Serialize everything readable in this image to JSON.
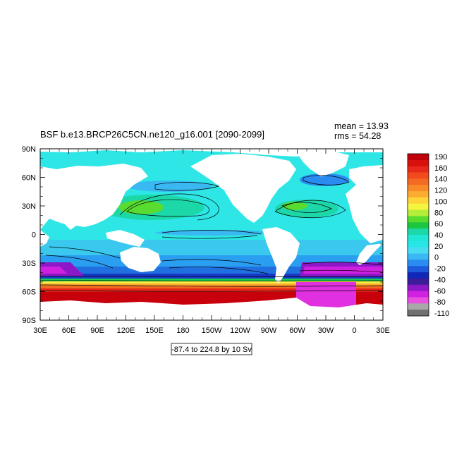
{
  "title": "BSF b.e13.BRCP26C5CN.ne120_g16.001 [2090-2099]",
  "stats": {
    "mean": "mean = 13.93",
    "rms": "rms = 54.28"
  },
  "contour_info": "-87.4 to 224.8 by 10 Sv",
  "map": {
    "lat_labels": [
      "90N",
      "60N",
      "30N",
      "0",
      "30S",
      "60S",
      "90S"
    ],
    "lon_labels": [
      "30E",
      "60E",
      "90E",
      "120E",
      "150E",
      "180",
      "150W",
      "120W",
      "90W",
      "60W",
      "30W",
      "0",
      "30E"
    ],
    "land_color": "#ffffff",
    "frame_color": "#000000"
  },
  "colorbar": {
    "labels": [
      "190",
      "160",
      "140",
      "120",
      "100",
      "80",
      "60",
      "40",
      "20",
      "0",
      "-20",
      "-40",
      "-60",
      "-80",
      "-110"
    ],
    "colors": [
      "#c0000a",
      "#d8100e",
      "#e8281a",
      "#f24a1e",
      "#f56a22",
      "#f98a28",
      "#fbac30",
      "#fed43a",
      "#f5f540",
      "#b4ee38",
      "#58dc30",
      "#1cc640",
      "#1cd8a8",
      "#20e6d6",
      "#28e6e6",
      "#48dcf2",
      "#3ab8f2",
      "#2a8cf0",
      "#1c5cdc",
      "#1028b8",
      "#3c1c98",
      "#8c18c8",
      "#d020e0",
      "#e850e0",
      "#a8a8a8",
      "#707070"
    ]
  },
  "chart_data": {
    "type": "heatmap",
    "title": "BSF b.e13.BRCP26C5CN.ne120_g16.001 [2090-2099]",
    "x_ticks": [
      "30E",
      "60E",
      "90E",
      "120E",
      "150E",
      "180",
      "150W",
      "120W",
      "90W",
      "60W",
      "30W",
      "0",
      "30E"
    ],
    "y_ticks": [
      "90N",
      "60N",
      "30N",
      "0",
      "30S",
      "60S",
      "90S"
    ],
    "levels": [
      -110,
      -80,
      -60,
      -40,
      -20,
      0,
      20,
      40,
      60,
      80,
      100,
      120,
      140,
      160,
      190
    ],
    "min": -87.4,
    "max": 224.8,
    "interval": 10,
    "units": "Sv",
    "mean": 13.93,
    "rms": 54.28
  }
}
